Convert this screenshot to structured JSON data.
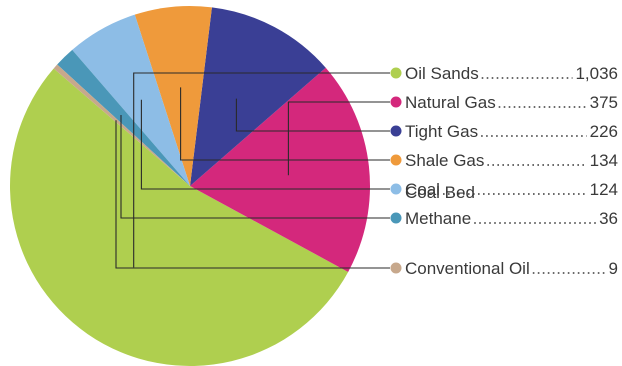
{
  "chart_data": {
    "type": "pie",
    "legend_placement": "right",
    "slices": [
      {
        "label": "Oil Sands",
        "label_lines": [
          "Oil Sands"
        ],
        "value": 1036,
        "value_text": "1,036",
        "color": "#afcf4f"
      },
      {
        "label": "Natural Gas",
        "label_lines": [
          "Natural Gas"
        ],
        "value": 375,
        "value_text": "375",
        "color": "#d4287c"
      },
      {
        "label": "Tight Gas",
        "label_lines": [
          "Tight Gas"
        ],
        "value": 226,
        "value_text": "226",
        "color": "#3a3f95"
      },
      {
        "label": "Shale Gas",
        "label_lines": [
          "Shale Gas"
        ],
        "value": 134,
        "value_text": "134",
        "color": "#ef9a3b"
      },
      {
        "label": "Coal",
        "label_lines": [
          "Coal"
        ],
        "value": 124,
        "value_text": "124",
        "color": "#8dbde6"
      },
      {
        "label": "Coal Bed Methane",
        "label_lines": [
          "Coal Bed",
          "Methane"
        ],
        "value": 36,
        "value_text": "36",
        "color": "#4a97b8"
      },
      {
        "label": "Conventional Oil",
        "label_lines": [
          "Conventional Oil"
        ],
        "value": 9,
        "value_text": "9",
        "color": "#c7a88c"
      }
    ]
  }
}
